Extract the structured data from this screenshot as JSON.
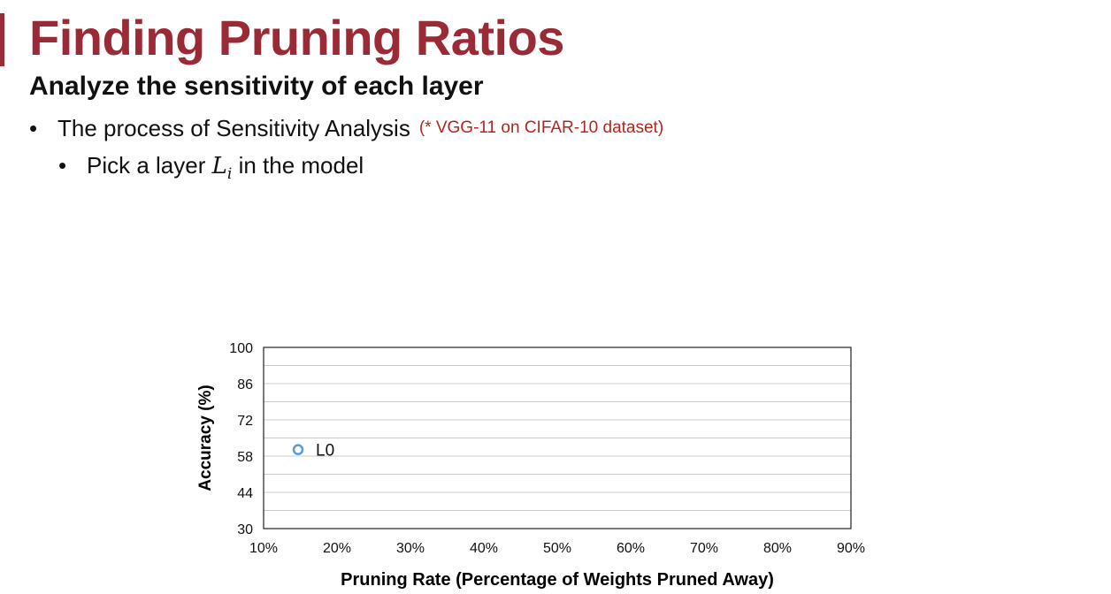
{
  "slide": {
    "title": "Finding Pruning Ratios",
    "subtitle": "Analyze the sensitivity of each layer",
    "bullet1": "The process of Sensitivity Analysis",
    "bullet1_note": "(* VGG-11 on CIFAR-10 dataset)",
    "bullet2_prefix": "Pick a layer",
    "bullet2_var": "L",
    "bullet2_sub": "i",
    "bullet2_suffix": "in the model",
    "bullet_symbol": "•"
  },
  "colors": {
    "title": "#9a2a35",
    "note": "#b3261e",
    "point": "#5b9bd5",
    "grid": "#cccccc",
    "axis": "#333333"
  },
  "chart_data": {
    "type": "scatter",
    "xlabel": "Pruning Rate (Percentage of Weights Pruned Away)",
    "ylabel": "Accuracy (%)",
    "xlim": [
      10,
      90
    ],
    "ylim": [
      30,
      100
    ],
    "x_ticks": [
      10,
      20,
      30,
      40,
      50,
      60,
      70,
      80,
      90
    ],
    "x_tick_labels": [
      "10%",
      "20%",
      "30%",
      "40%",
      "50%",
      "60%",
      "70%",
      "80%",
      "90%"
    ],
    "y_ticks": [
      30,
      44,
      58,
      72,
      86,
      100
    ],
    "y_tick_labels": [
      "30",
      "44",
      "58",
      "72",
      "86",
      "100"
    ],
    "grid": true,
    "series": [
      {
        "name": "L0",
        "points": [
          {
            "x": 14.7,
            "y": 60.5
          }
        ]
      }
    ]
  }
}
